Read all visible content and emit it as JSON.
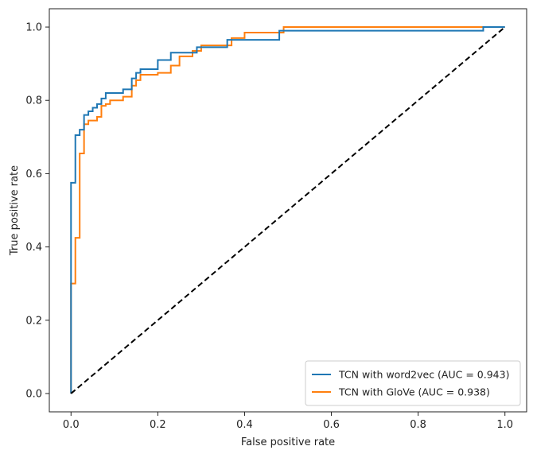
{
  "chart_data": {
    "type": "line",
    "title": "",
    "xlabel": "False positive rate",
    "ylabel": "True positive rate",
    "xlim": [
      -0.05,
      1.05
    ],
    "ylim": [
      -0.05,
      1.05
    ],
    "xticks": [
      0.0,
      0.2,
      0.4,
      0.6,
      0.8,
      1.0
    ],
    "yticks": [
      0.0,
      0.2,
      0.4,
      0.6,
      0.8,
      1.0
    ],
    "xtick_labels": [
      "0.0",
      "0.2",
      "0.4",
      "0.6",
      "0.8",
      "1.0"
    ],
    "ytick_labels": [
      "0.0",
      "0.2",
      "0.4",
      "0.6",
      "0.8",
      "1.0"
    ],
    "grid": false,
    "legend_position": "bottom-right",
    "series": [
      {
        "name": "TCN with word2vec (AUC = 0.943)",
        "color": "#1f77b4",
        "x": [
          0,
          0,
          0.01,
          0.01,
          0.02,
          0.02,
          0.03,
          0.03,
          0.04,
          0.04,
          0.05,
          0.05,
          0.06,
          0.06,
          0.07,
          0.07,
          0.08,
          0.08,
          0.12,
          0.12,
          0.14,
          0.14,
          0.15,
          0.15,
          0.16,
          0.16,
          0.2,
          0.2,
          0.23,
          0.23,
          0.29,
          0.29,
          0.36,
          0.36,
          0.48,
          0.48,
          0.95,
          0.95,
          1.0
        ],
        "y": [
          0,
          0.575,
          0.575,
          0.705,
          0.705,
          0.72,
          0.72,
          0.76,
          0.76,
          0.77,
          0.77,
          0.78,
          0.78,
          0.79,
          0.79,
          0.805,
          0.805,
          0.82,
          0.82,
          0.83,
          0.83,
          0.86,
          0.86,
          0.875,
          0.875,
          0.885,
          0.885,
          0.91,
          0.91,
          0.93,
          0.93,
          0.945,
          0.945,
          0.965,
          0.965,
          0.99,
          0.99,
          1.0,
          1.0
        ]
      },
      {
        "name": "TCN with GloVe (AUC = 0.938)",
        "color": "#ff7f0e",
        "x": [
          0,
          0,
          0.01,
          0.01,
          0.02,
          0.02,
          0.03,
          0.03,
          0.04,
          0.04,
          0.06,
          0.06,
          0.07,
          0.07,
          0.08,
          0.08,
          0.09,
          0.09,
          0.12,
          0.12,
          0.14,
          0.14,
          0.15,
          0.15,
          0.16,
          0.16,
          0.2,
          0.2,
          0.23,
          0.23,
          0.25,
          0.25,
          0.28,
          0.28,
          0.3,
          0.3,
          0.37,
          0.37,
          0.4,
          0.4,
          0.49,
          0.49,
          1.0
        ],
        "y": [
          0,
          0.3,
          0.3,
          0.425,
          0.425,
          0.655,
          0.655,
          0.735,
          0.735,
          0.745,
          0.745,
          0.755,
          0.755,
          0.785,
          0.785,
          0.79,
          0.79,
          0.8,
          0.8,
          0.81,
          0.81,
          0.84,
          0.84,
          0.855,
          0.855,
          0.87,
          0.87,
          0.875,
          0.875,
          0.895,
          0.895,
          0.92,
          0.92,
          0.935,
          0.935,
          0.95,
          0.95,
          0.97,
          0.97,
          0.985,
          0.985,
          1.0,
          1.0
        ]
      },
      {
        "name": "",
        "color": "#000000",
        "dashed": true,
        "x": [
          0,
          1
        ],
        "y": [
          0,
          1
        ]
      }
    ]
  }
}
